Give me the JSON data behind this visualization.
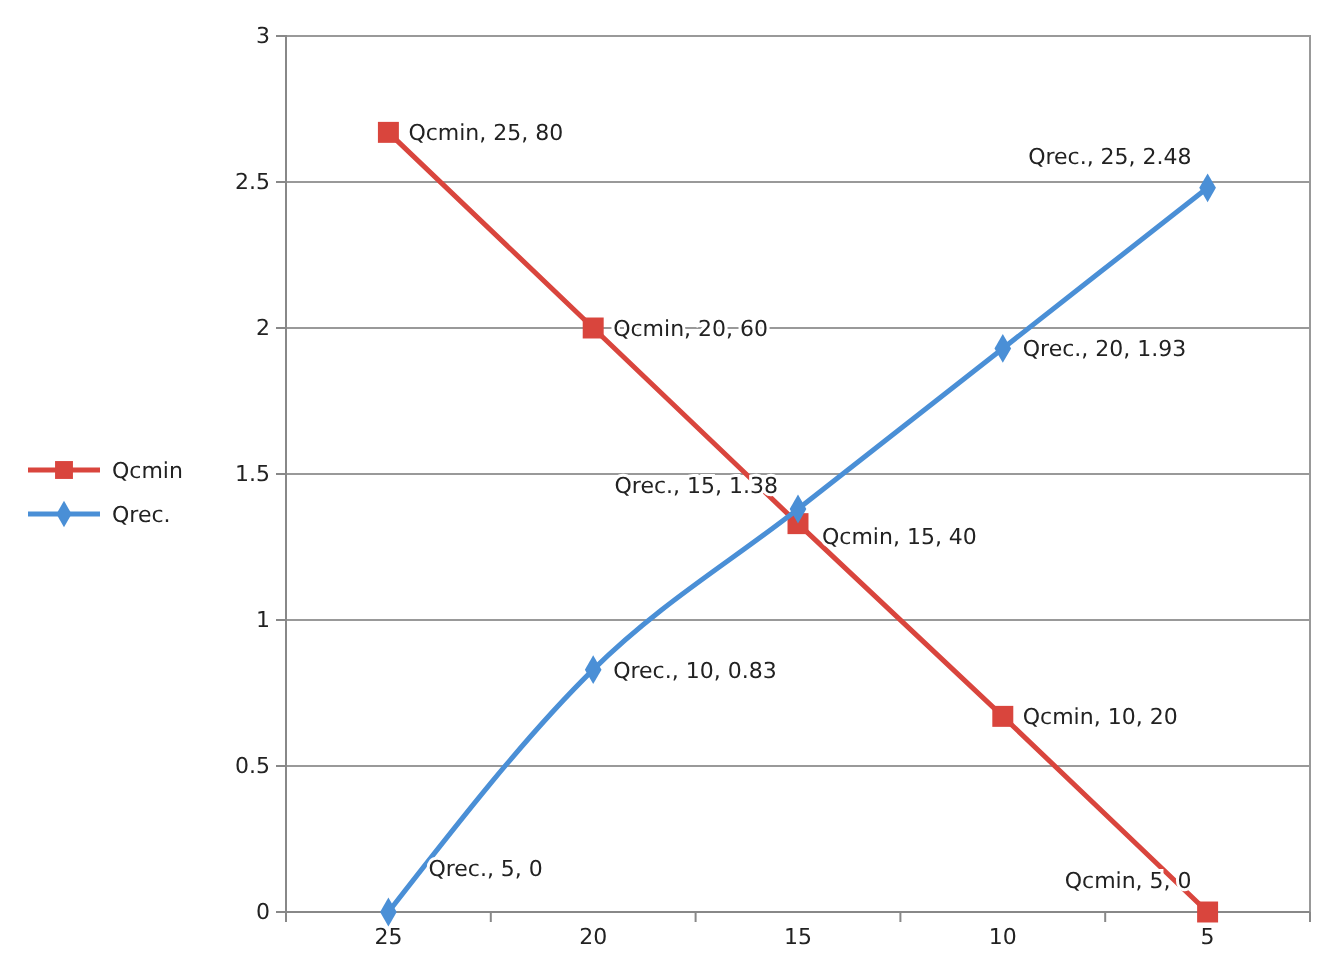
{
  "chart_data": {
    "type": "line",
    "categories": [
      "25",
      "20",
      "15",
      "10",
      "5"
    ],
    "ylim": [
      0,
      3
    ],
    "yticks": [
      0,
      0.5,
      1,
      1.5,
      2,
      2.5,
      3
    ],
    "grid": "y",
    "legend": "left",
    "series": [
      {
        "name": "Qcmin",
        "color": "#d9453d",
        "marker": "square",
        "values": [
          2.67,
          2,
          1.33,
          0.67,
          0
        ],
        "value_labels": [
          "Qcmin, 25, 80",
          "Qcmin, 20, 60",
          "Qcmin, 15, 40",
          "Qcmin, 10, 20",
          "Qcmin, 5, 0"
        ]
      },
      {
        "name": "Qrec.",
        "color": "#4a8fd6",
        "marker": "diamond",
        "values": [
          0,
          0.83,
          1.38,
          1.93,
          2.48
        ],
        "value_labels": [
          "Qrec., 5, 0",
          "Qrec., 10, 0.83",
          "Qrec., 15, 1.38",
          "Qrec., 20, 1.93",
          "Qrec., 25, 2.48"
        ]
      }
    ]
  }
}
